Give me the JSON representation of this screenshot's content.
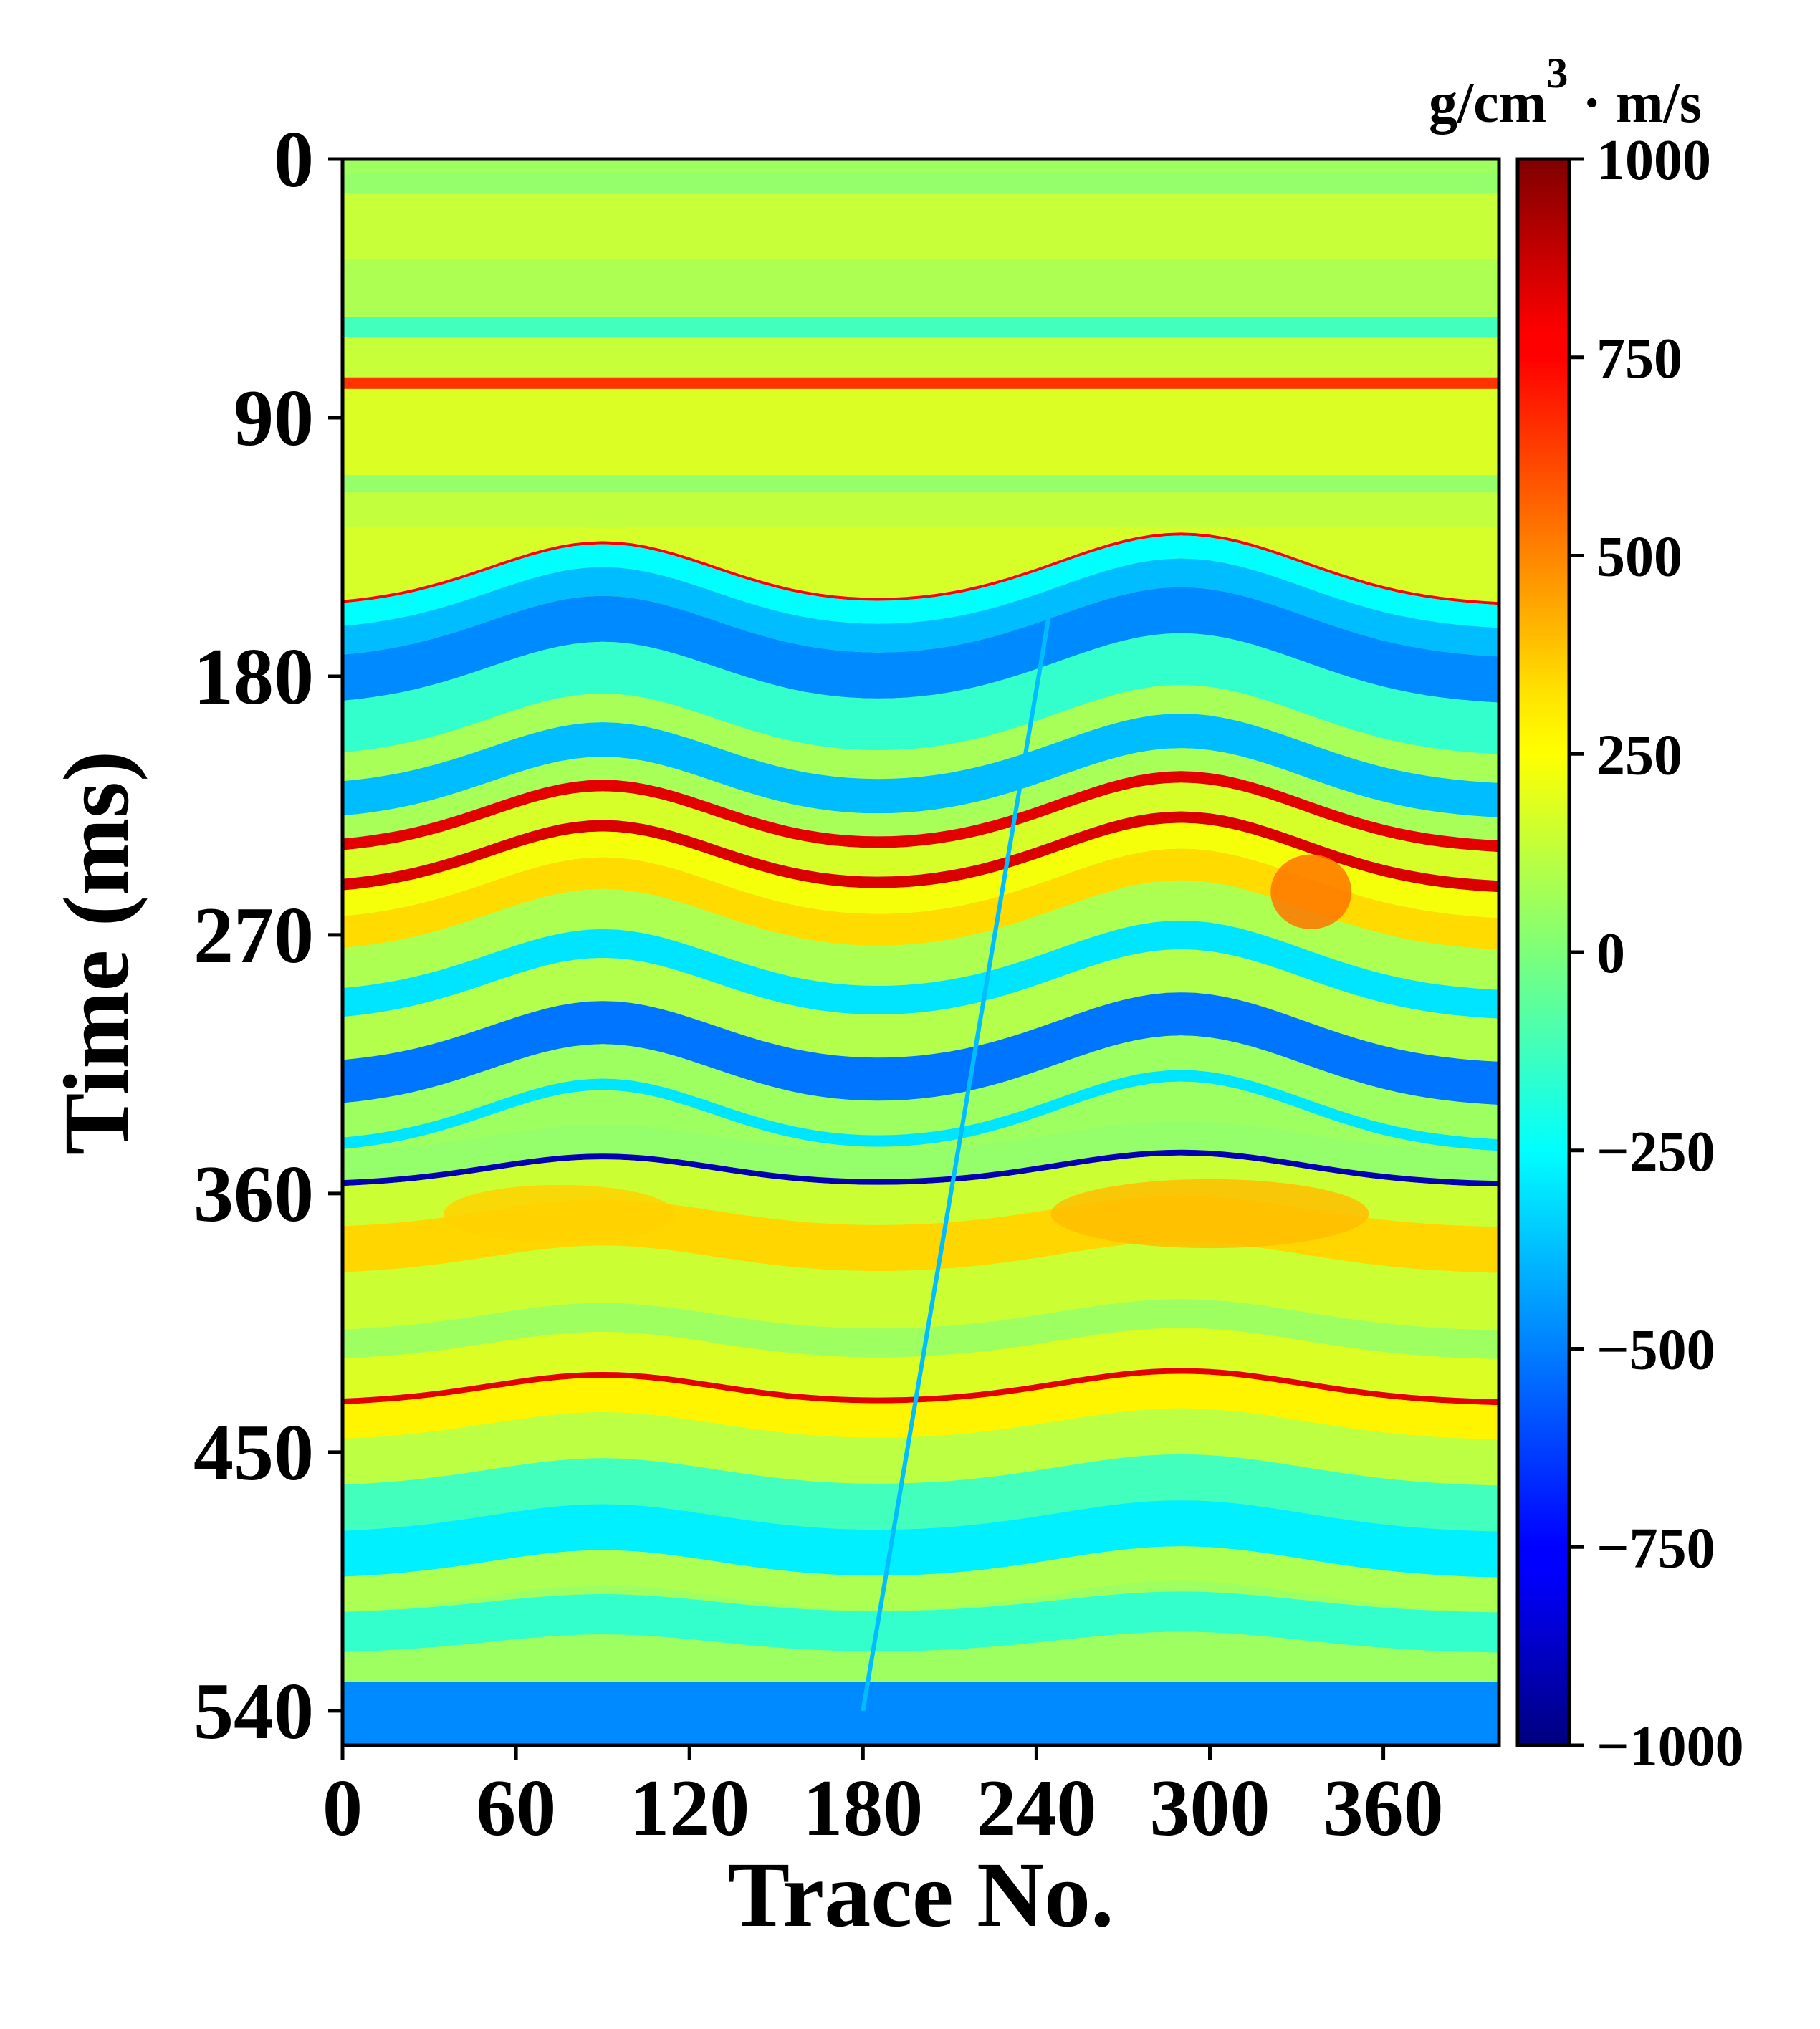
{
  "chart_data": {
    "type": "heatmap",
    "title": "",
    "xlabel": "Trace No.",
    "ylabel": "Time (ms)",
    "xlim": [
      0,
      400
    ],
    "ylim": [
      0,
      552
    ],
    "y_inverted": true,
    "xticks": [
      0,
      60,
      120,
      180,
      240,
      300,
      360
    ],
    "xtick_labels": [
      "0",
      "60",
      "120",
      "180",
      "240",
      "300",
      "360"
    ],
    "yticks": [
      0,
      90,
      180,
      270,
      360,
      450,
      540
    ],
    "ytick_labels": [
      "0",
      "90",
      "180",
      "270",
      "360",
      "450",
      "540"
    ],
    "grid": false,
    "colormap": "jet",
    "colorbar": {
      "min": -1000,
      "max": 1000,
      "ticks": [
        1000,
        750,
        500,
        250,
        0,
        -250,
        -500,
        -750,
        -1000
      ],
      "tick_labels": [
        "1000",
        "750",
        "500",
        "250",
        "0",
        "−250",
        "−500",
        "−750",
        "−1000"
      ],
      "unit_main": "g/cm",
      "unit_sup": "3",
      "unit_tail": " · m/s"
    },
    "background_value": 60,
    "layers": [
      {
        "t": [
          5,
          12
        ],
        "v": 40
      },
      {
        "t": [
          12,
          35
        ],
        "v": 140
      },
      {
        "t": [
          35,
          55
        ],
        "v": 90
      },
      {
        "t": [
          55,
          62
        ],
        "v": -120
      },
      {
        "t": [
          62,
          76
        ],
        "v": 140
      },
      {
        "t": [
          76,
          80
        ],
        "v": 650
      },
      {
        "t": [
          80,
          110
        ],
        "v": 180
      },
      {
        "t": [
          110,
          116
        ],
        "v": 40
      },
      {
        "t": [
          116,
          128
        ],
        "v": 130
      },
      {
        "t": [
          128,
          155
        ],
        "v": 170
      },
      {
        "t": [
          155,
          156
        ],
        "v": 750
      },
      {
        "t": [
          156,
          164
        ],
        "v": -250
      },
      {
        "t": [
          164,
          174
        ],
        "v": -380
      },
      {
        "t": [
          174,
          190
        ],
        "v": -480
      },
      {
        "t": [
          190,
          208
        ],
        "v": -150
      },
      {
        "t": [
          208,
          218
        ],
        "v": 80
      },
      {
        "t": [
          218,
          230
        ],
        "v": -380
      },
      {
        "t": [
          230,
          238
        ],
        "v": 80
      },
      {
        "t": [
          238,
          242
        ],
        "v": 800
      },
      {
        "t": [
          242,
          252
        ],
        "v": 170
      },
      {
        "t": [
          252,
          256
        ],
        "v": 820
      },
      {
        "t": [
          256,
          265
        ],
        "v": 230
      },
      {
        "t": [
          265,
          276
        ],
        "v": 320
      },
      {
        "t": [
          276,
          290
        ],
        "v": 90
      },
      {
        "t": [
          290,
          300
        ],
        "v": -300
      },
      {
        "t": [
          300,
          315
        ],
        "v": 100
      },
      {
        "t": [
          315,
          330
        ],
        "v": -520
      },
      {
        "t": [
          330,
          342
        ],
        "v": 60
      },
      {
        "t": [
          342,
          346
        ],
        "v": -300
      },
      {
        "t": [
          346,
          356
        ],
        "v": 40
      },
      {
        "t": [
          356,
          358
        ],
        "v": -900
      },
      {
        "t": [
          358,
          372
        ],
        "v": 150
      },
      {
        "t": [
          372,
          388
        ],
        "v": 330
      },
      {
        "t": [
          388,
          408
        ],
        "v": 150
      },
      {
        "t": [
          408,
          418
        ],
        "v": 60
      },
      {
        "t": [
          418,
          432
        ],
        "v": 180
      },
      {
        "t": [
          432,
          434
        ],
        "v": 800
      },
      {
        "t": [
          434,
          446
        ],
        "v": 270
      },
      {
        "t": [
          446,
          462
        ],
        "v": 120
      },
      {
        "t": [
          462,
          478
        ],
        "v": -120
      },
      {
        "t": [
          478,
          494
        ],
        "v": -280
      },
      {
        "t": [
          494,
          506
        ],
        "v": 90
      },
      {
        "t": [
          506,
          520
        ],
        "v": -150
      },
      {
        "t": [
          520,
          530
        ],
        "v": 60
      },
      {
        "t": [
          530,
          552
        ],
        "v": -480
      }
    ],
    "fault": {
      "top": [
        245,
        155
      ],
      "bottom": [
        180,
        540
      ],
      "offset_ms": 28
    },
    "anomalies": [
      {
        "x": 335,
        "t": 255,
        "rx": 14,
        "ry": 13,
        "v": 520
      },
      {
        "x": 300,
        "t": 367,
        "rx": 55,
        "ry": 12,
        "v": 380
      },
      {
        "x": 75,
        "t": 367,
        "rx": 40,
        "ry": 10,
        "v": 340
      }
    ]
  }
}
